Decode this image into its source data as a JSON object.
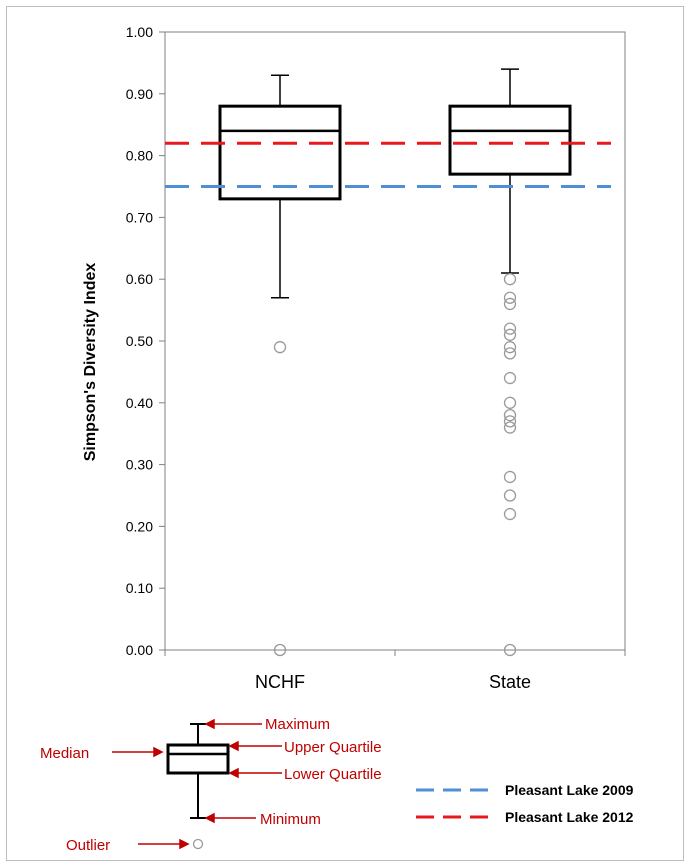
{
  "chart_data": {
    "type": "box",
    "ylabel": "Simpson's Diversity Index",
    "ylim": [
      0,
      1
    ],
    "yticks": [
      "0.00",
      "0.10",
      "0.20",
      "0.30",
      "0.40",
      "0.50",
      "0.60",
      "0.70",
      "0.80",
      "0.90",
      "1.00"
    ],
    "categories": [
      "NCHF",
      "State"
    ],
    "boxes": [
      {
        "category": "NCHF",
        "min": 0.57,
        "q1": 0.73,
        "median": 0.84,
        "q3": 0.88,
        "max": 0.93,
        "outliers": [
          0.49,
          0.0
        ]
      },
      {
        "category": "State",
        "min": 0.61,
        "q1": 0.77,
        "median": 0.84,
        "q3": 0.88,
        "max": 0.94,
        "outliers": [
          0.6,
          0.57,
          0.56,
          0.52,
          0.51,
          0.49,
          0.48,
          0.44,
          0.4,
          0.38,
          0.37,
          0.36,
          0.28,
          0.25,
          0.22,
          0.0
        ]
      }
    ],
    "reference_lines": [
      {
        "name": "Pleasant Lake 2009",
        "value": 0.75,
        "color": "#4f8fd6",
        "style": "dashed"
      },
      {
        "name": "Pleasant Lake 2012",
        "value": 0.82,
        "color": "#e8191c",
        "style": "dashed"
      }
    ]
  },
  "key": {
    "maximum": "Maximum",
    "upper_quartile": "Upper Quartile",
    "median": "Median",
    "lower_quartile": "Lower Quartile",
    "minimum": "Minimum",
    "outlier": "Outlier",
    "arrow_color": "#c00000"
  }
}
